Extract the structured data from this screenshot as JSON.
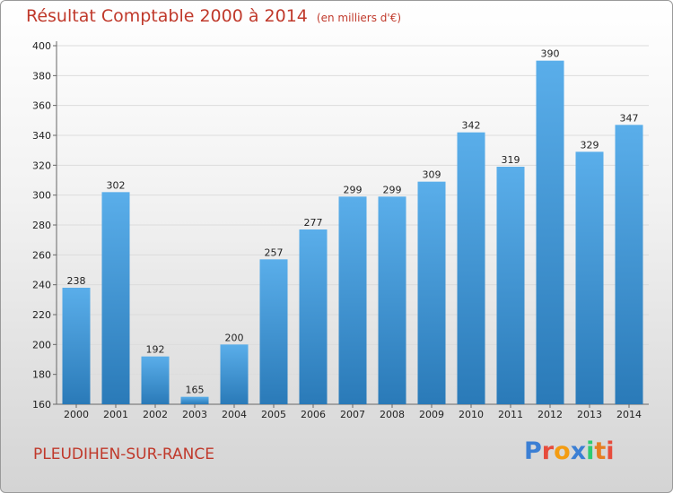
{
  "chart_data": {
    "type": "bar",
    "title": "Résultat Comptable 2000 à 2014",
    "unit": "(en milliers d'€)",
    "subtitle": "PLEUDIHEN-SUR-RANCE",
    "categories": [
      "2000",
      "2001",
      "2002",
      "2003",
      "2004",
      "2005",
      "2006",
      "2007",
      "2008",
      "2009",
      "2010",
      "2011",
      "2012",
      "2013",
      "2014"
    ],
    "values": [
      238,
      302,
      192,
      165,
      200,
      257,
      277,
      299,
      299,
      309,
      342,
      319,
      390,
      329,
      347
    ],
    "ylim": [
      160,
      400
    ],
    "yticks": [
      160,
      180,
      200,
      220,
      240,
      260,
      280,
      300,
      320,
      340,
      360,
      380,
      400
    ],
    "grid": true,
    "colors": {
      "bar_light": "#5aaeea",
      "bar_dark": "#2a7ab8",
      "text_red": "#c0392b"
    }
  },
  "logo": {
    "letters": [
      {
        "ch": "P",
        "color": "#3b7fd4"
      },
      {
        "ch": "r",
        "color": "#e74c3c"
      },
      {
        "ch": "o",
        "color": "#f39c12"
      },
      {
        "ch": "x",
        "color": "#3b7fd4"
      },
      {
        "ch": "i",
        "color": "#2ecc71"
      },
      {
        "ch": "t",
        "color": "#e67e22"
      },
      {
        "ch": "i",
        "color": "#e74c3c"
      }
    ]
  }
}
